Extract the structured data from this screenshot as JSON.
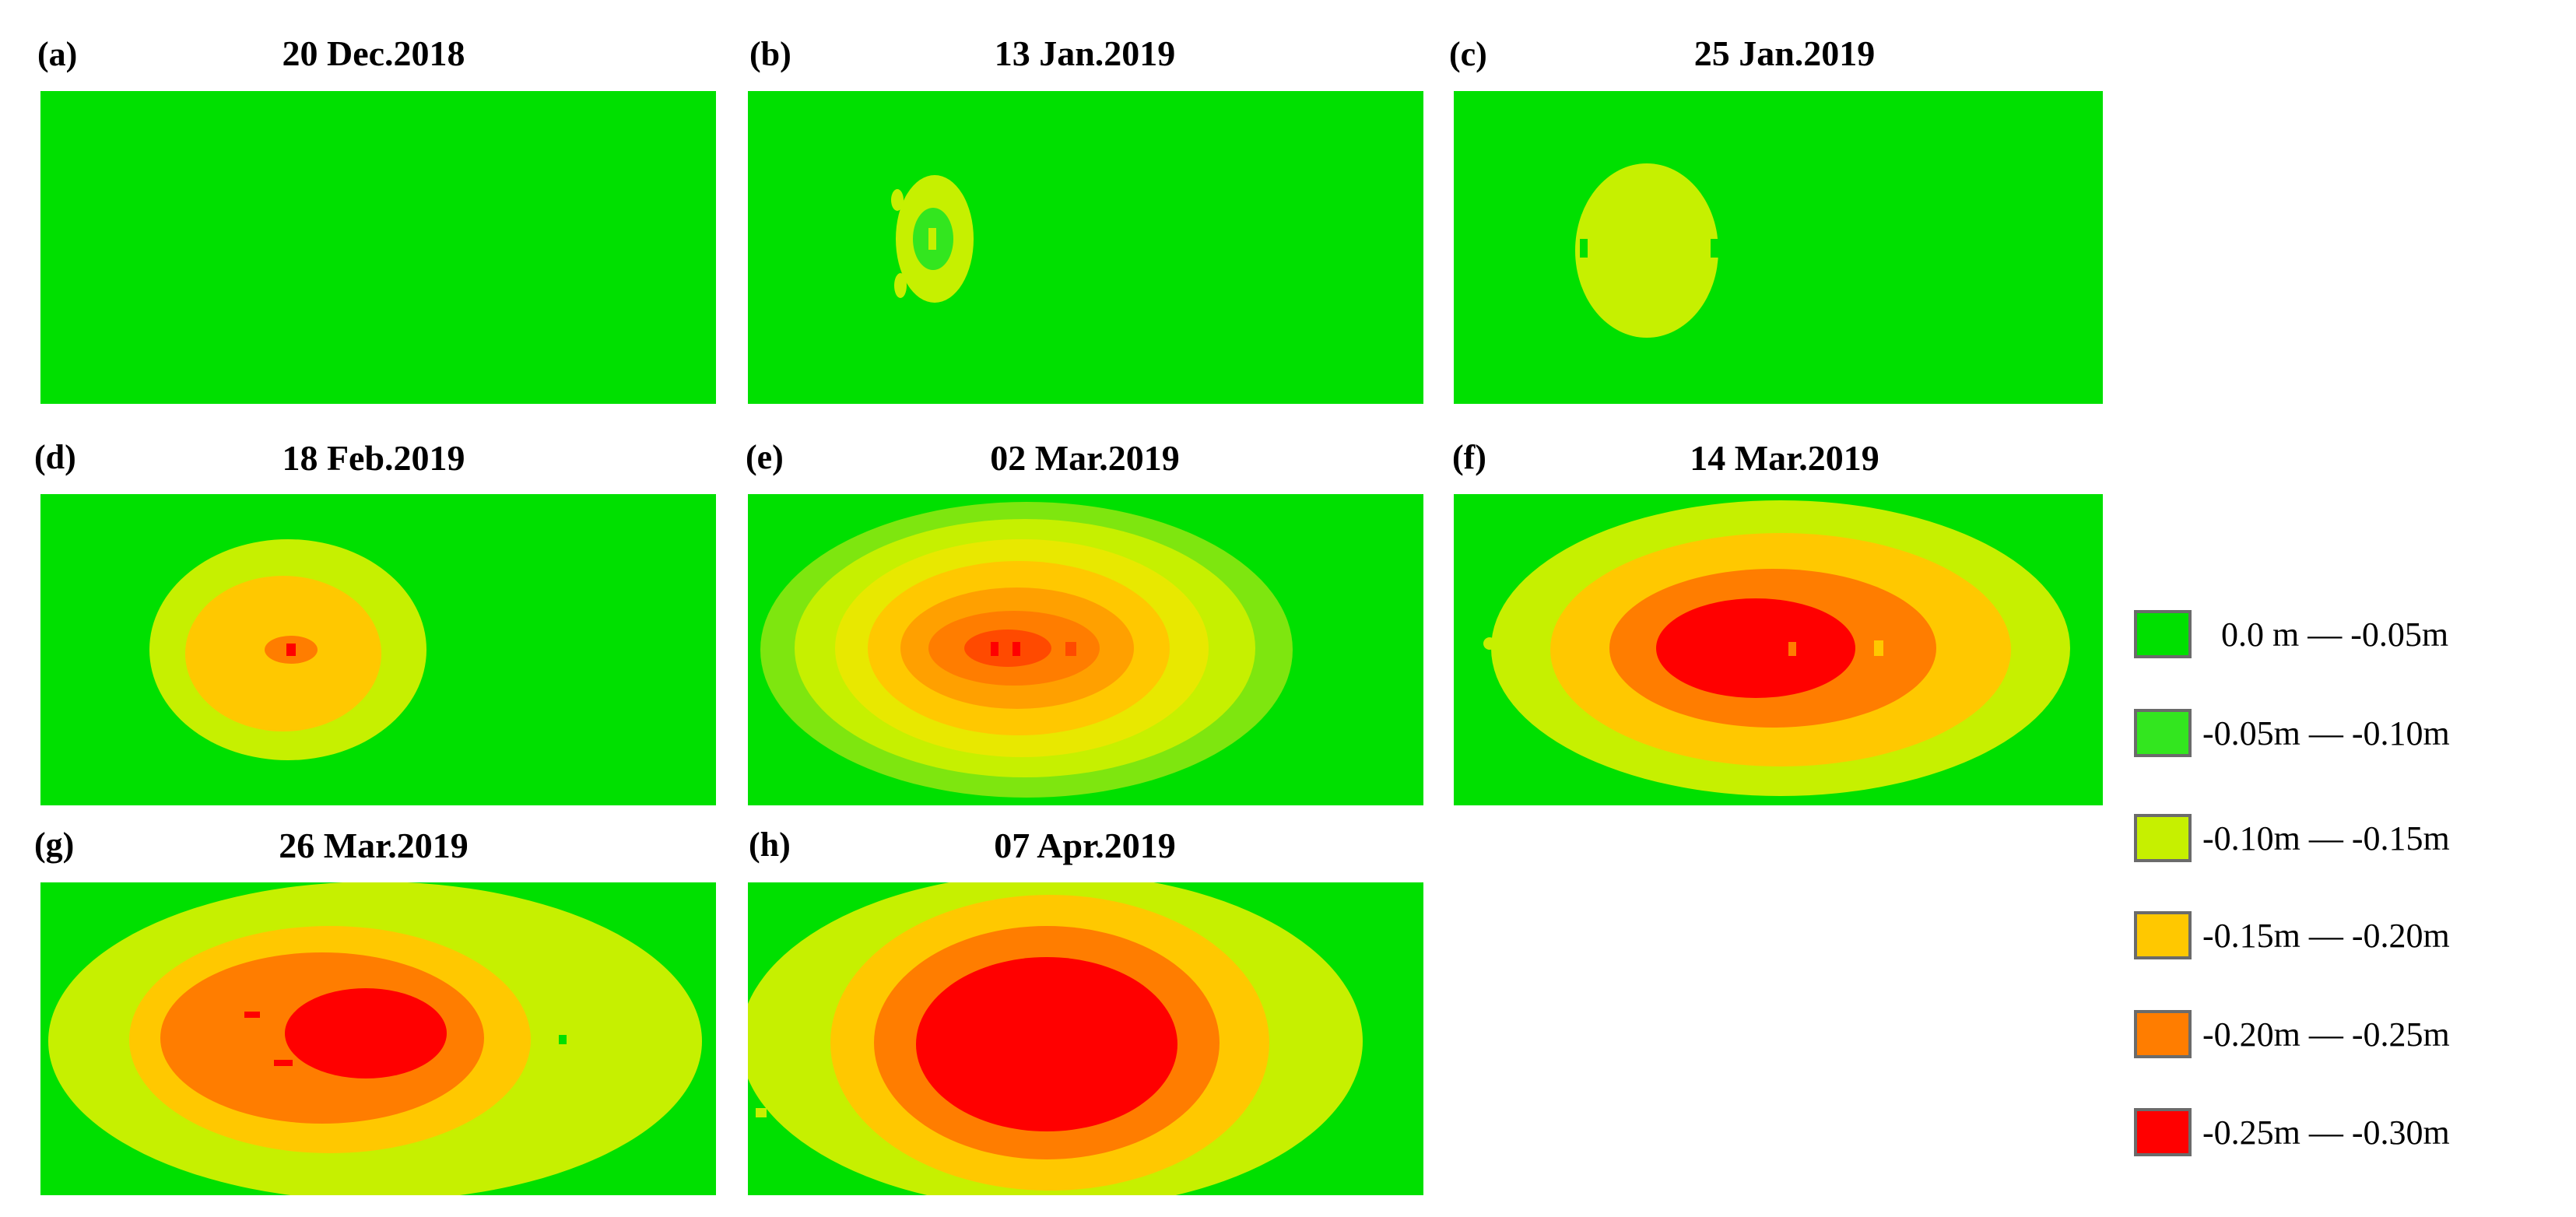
{
  "figure": {
    "panels": [
      {
        "letter": "(a)",
        "date": "20 Dec.2018"
      },
      {
        "letter": "(b)",
        "date": "13 Jan.2019"
      },
      {
        "letter": "(c)",
        "date": "25 Jan.2019"
      },
      {
        "letter": "(d)",
        "date": "18 Feb.2019"
      },
      {
        "letter": "(e)",
        "date": "02 Mar.2019"
      },
      {
        "letter": "(f)",
        "date": "14 Mar.2019"
      },
      {
        "letter": "(g)",
        "date": "26 Mar.2019"
      },
      {
        "letter": "(h)",
        "date": "07 Apr.2019"
      }
    ],
    "legend": [
      {
        "label": "0.0 m — -0.05m",
        "color": "#00e000"
      },
      {
        "label": "-0.05m — -0.10m",
        "color": "#33e61f"
      },
      {
        "label": "-0.10m — -0.15m",
        "color": "#c6f000"
      },
      {
        "label": "-0.15m — -0.20m",
        "color": "#ffc800"
      },
      {
        "label": "-0.20m — -0.25m",
        "color": "#ff7d00"
      },
      {
        "label": "-0.25m — -0.30m",
        "color": "#ff0000"
      }
    ]
  }
}
